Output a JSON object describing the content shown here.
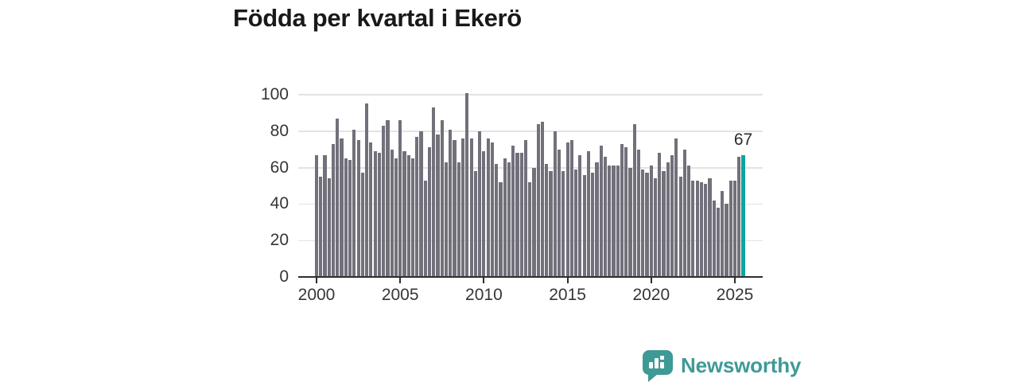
{
  "title": "Födda per kvartal i Ekerö",
  "annotation": {
    "label": "67",
    "value": 67
  },
  "logo": {
    "brand": "Newsworthy",
    "icon": "speech-bubble-bar-chart-icon"
  },
  "colors": {
    "bar": "#72707a",
    "highlight": "#0aa6a1",
    "grid": "#e3e3e5",
    "axis": "#2e2e2e",
    "tick_text": "#363636",
    "title_text": "#191919",
    "annotation_text": "#2b2b2b",
    "logo": "#3e9a96"
  },
  "chart_data": {
    "type": "bar",
    "title": "Födda per kvartal i Ekerö",
    "xlabel": "",
    "ylabel": "",
    "x_start": "2000-Q1",
    "x_end": "2025-Q3",
    "x_tick_labels": [
      "2000",
      "2005",
      "2010",
      "2015",
      "2020",
      "2025"
    ],
    "y_ticks": [
      0,
      20,
      40,
      60,
      80,
      100
    ],
    "ylim": [
      0,
      100
    ],
    "grid": "horizontal",
    "legend": "none",
    "highlight_last_bar": true,
    "last_bar_label": "67",
    "values": [
      67,
      55,
      67,
      54,
      73,
      87,
      76,
      65,
      64,
      81,
      75,
      57,
      95,
      74,
      69,
      68,
      83,
      86,
      70,
      65,
      86,
      69,
      67,
      65,
      77,
      80,
      53,
      71,
      93,
      78,
      86,
      63,
      81,
      75,
      63,
      76,
      101,
      76,
      58,
      80,
      69,
      76,
      74,
      62,
      52,
      65,
      63,
      72,
      68,
      68,
      75,
      52,
      60,
      84,
      85,
      62,
      58,
      80,
      70,
      58,
      74,
      75,
      59,
      67,
      56,
      69,
      57,
      63,
      72,
      66,
      61,
      61,
      61,
      73,
      71,
      60,
      84,
      70,
      59,
      57,
      61,
      54,
      68,
      58,
      63,
      67,
      76,
      55,
      70,
      61,
      53,
      53,
      52,
      51,
      54,
      42,
      38,
      47,
      40,
      53,
      53,
      66,
      67
    ]
  }
}
